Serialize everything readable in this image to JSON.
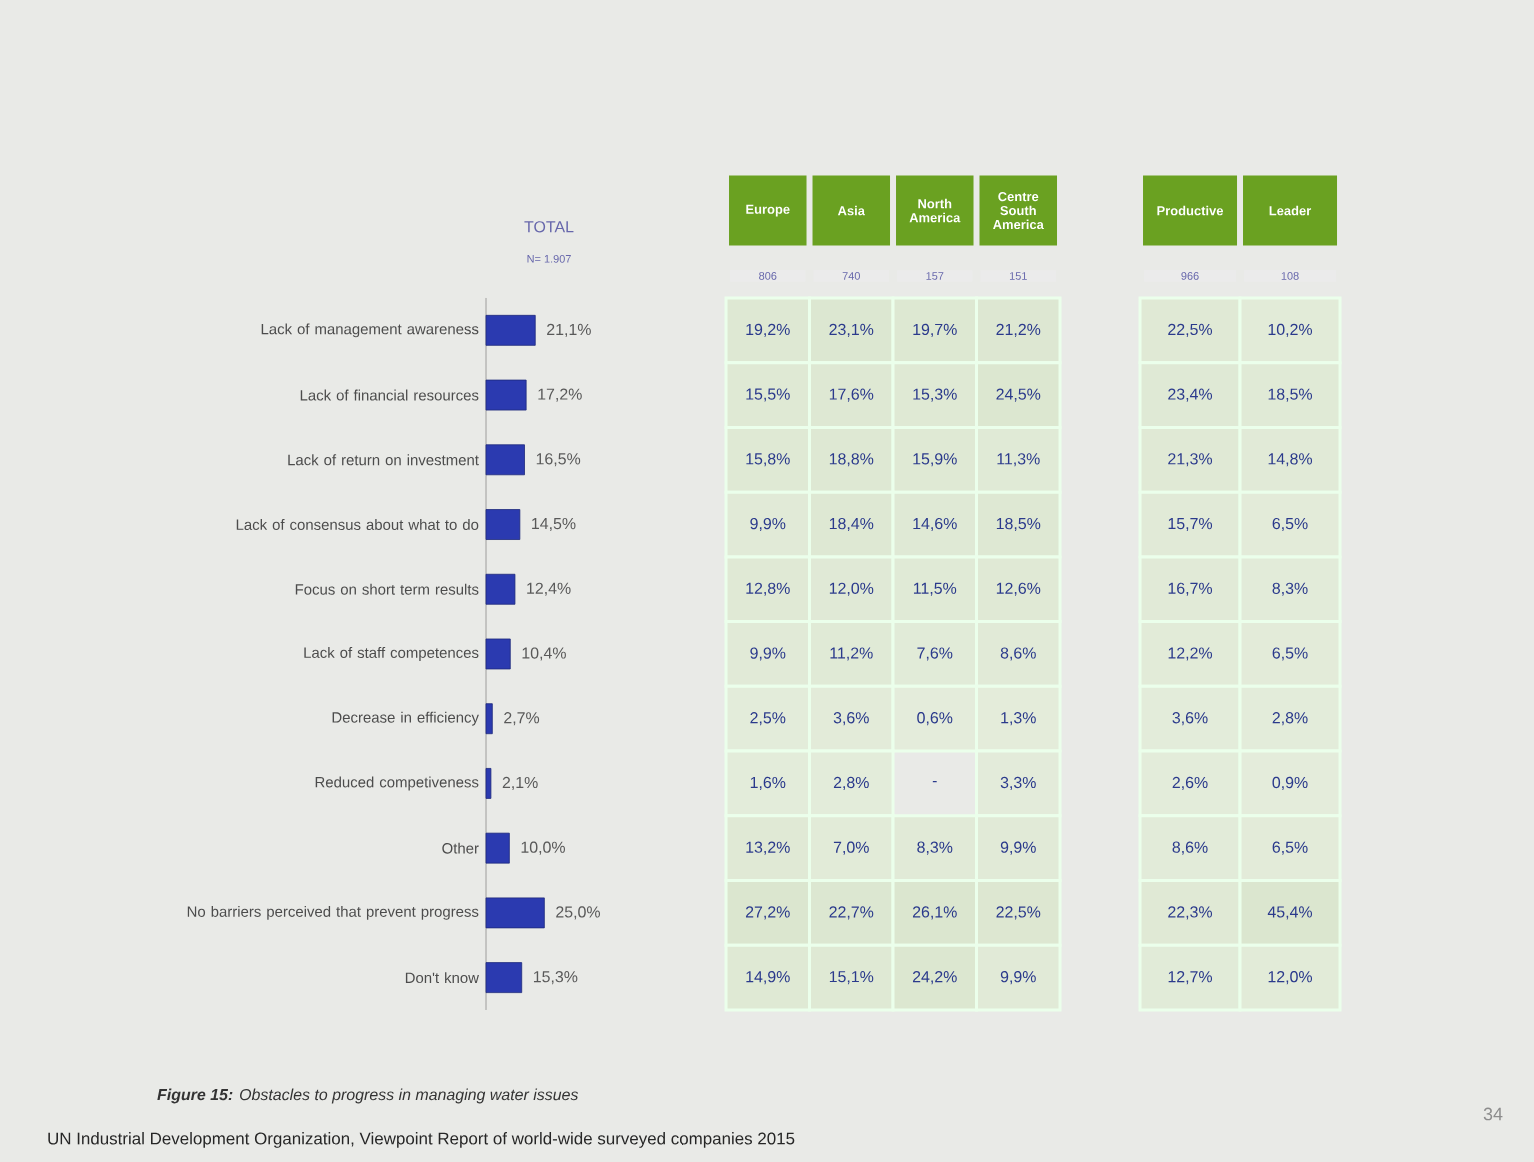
{
  "chart_data": [
    {
      "type": "bar",
      "orientation": "horizontal",
      "title": "TOTAL",
      "subtitle": "N= 1.907",
      "tick_labels": "y",
      "color": "#2b3ab0",
      "categories": [
        "Lack of management awareness",
        "Lack of financial resources",
        "Lack of return on investment",
        "Lack of consensus about what to do",
        "Focus on short term results",
        "Lack of staff competences",
        "Decrease in efficiency",
        "Reduced competiveness",
        "Other",
        "No barriers perceived that prevent progress",
        "Don't know"
      ],
      "values": [
        21.1,
        17.2,
        16.5,
        14.5,
        12.4,
        10.4,
        2.7,
        2.1,
        10.0,
        25.0,
        15.3
      ],
      "value_labels": [
        "21,1%",
        "17,2%",
        "16,5%",
        "14,5%",
        "12,4%",
        "10,4%",
        "2,7%",
        "2,1%",
        "10,0%",
        "25,0%",
        "15,3%"
      ],
      "annotations": [
        "**Figure 15:** Obstacles to progress in managing water issues",
        "UN Industrial Development  Organization, Viewpoint Report  of world-wide surveyed companies 2015",
        "34"
      ]
    },
    {
      "type": "heatmap",
      "tick_labels": "x",
      "color": "#dbe6cf",
      "categories": [
        "Europe",
        "Asia",
        "North America",
        "Centre South America"
      ],
      "y_categories": [
        null,
        null,
        null,
        null,
        null,
        null,
        null,
        null,
        null,
        null,
        null
      ],
      "annotations": [
        "806",
        "740",
        "157",
        "151"
      ],
      "cells": [
        [
          19.2,
          23.1,
          19.7,
          21.2
        ],
        [
          15.5,
          17.6,
          15.3,
          24.5
        ],
        [
          15.8,
          18.8,
          15.9,
          11.3
        ],
        [
          9.9,
          18.4,
          14.6,
          18.5
        ],
        [
          12.8,
          12.0,
          11.5,
          12.6
        ],
        [
          9.9,
          11.2,
          7.6,
          8.6
        ],
        [
          2.5,
          3.6,
          0.6,
          1.3
        ],
        [
          1.6,
          2.8,
          null,
          3.3
        ],
        [
          13.2,
          7.0,
          8.3,
          9.9
        ],
        [
          27.2,
          22.7,
          26.1,
          22.5
        ],
        [
          14.9,
          15.1,
          24.2,
          9.9
        ]
      ],
      "cell_labels": [
        [
          "19,2%",
          "23,1%",
          "19,7%",
          "21,2%"
        ],
        [
          "15,5%",
          "17,6%",
          "15,3%",
          "24,5%"
        ],
        [
          "15,8%",
          "18,8%",
          "15,9%",
          "11,3%"
        ],
        [
          "9,9%",
          "18,4%",
          "14,6%",
          "18,5%"
        ],
        [
          "12,8%",
          "12,0%",
          "11,5%",
          "12,6%"
        ],
        [
          "9,9%",
          "11,2%",
          "7,6%",
          "8,6%"
        ],
        [
          "2,5%",
          "3,6%",
          "0,6%",
          "1,3%"
        ],
        [
          "1,6%",
          "2,8%",
          "-",
          "3,3%"
        ],
        [
          "13,2%",
          "7,0%",
          "8,3%",
          "9,9%"
        ],
        [
          "27,2%",
          "22,7%",
          "26,1%",
          "22,5%"
        ],
        [
          "14,9%",
          "15,1%",
          "24,2%",
          "9,9%"
        ]
      ]
    },
    {
      "type": "heatmap",
      "tick_labels": "x",
      "color": "#dbe6cf",
      "categories": [
        "Productive",
        "Leader"
      ],
      "y_categories": [
        null,
        null,
        null,
        null,
        null,
        null,
        null,
        null,
        null,
        null,
        null
      ],
      "annotations": [
        "966",
        "108"
      ],
      "cells": [
        [
          22.5,
          10.2
        ],
        [
          23.4,
          18.5
        ],
        [
          21.3,
          14.8
        ],
        [
          15.7,
          6.5
        ],
        [
          16.7,
          8.3
        ],
        [
          12.2,
          6.5
        ],
        [
          3.6,
          2.8
        ],
        [
          2.6,
          0.9
        ],
        [
          8.6,
          6.5
        ],
        [
          22.3,
          45.4
        ],
        [
          12.7,
          12.0
        ]
      ],
      "cell_labels": [
        [
          "22,5%",
          "10,2%"
        ],
        [
          "23,4%",
          "18,5%"
        ],
        [
          "21,3%",
          "14,8%"
        ],
        [
          "15,7%",
          "6,5%"
        ],
        [
          "16,7%",
          "8,3%"
        ],
        [
          "12,2%",
          "6,5%"
        ],
        [
          "3,6%",
          "2,8%"
        ],
        [
          "2,6%",
          "0,9%"
        ],
        [
          "8,6%",
          "6,5%"
        ],
        [
          "22,3%",
          "45,4%"
        ],
        [
          "12,7%",
          "12,0%"
        ]
      ]
    }
  ]
}
